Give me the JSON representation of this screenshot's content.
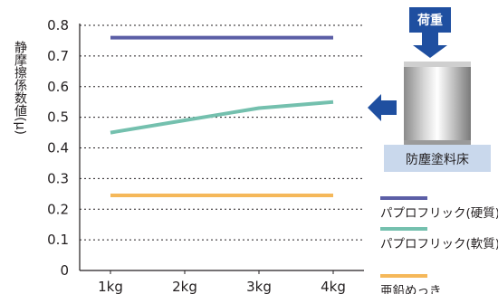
{
  "chart_data": {
    "type": "line",
    "categories": [
      "1kg",
      "2kg",
      "3kg",
      "4kg"
    ],
    "ylabel": "静摩擦係数値(μ)",
    "ylim": [
      0,
      0.8
    ],
    "yticks": [
      "0",
      "0.1",
      "0.2",
      "0.3",
      "0.4",
      "0.5",
      "0.6",
      "0.7",
      "0.8"
    ],
    "grid": true,
    "legend_position": "bottom-right",
    "series": [
      {
        "name": "パプロフリック(硬質)",
        "values": [
          0.76,
          0.76,
          0.76,
          0.76
        ],
        "color": "#5b5ea6"
      },
      {
        "name": "パプロフリック(軟質)",
        "values": [
          0.45,
          0.49,
          0.53,
          0.55
        ],
        "color": "#74c0ae"
      },
      {
        "name": "亜鉛めっき",
        "values": [
          0.245,
          0.245,
          0.245,
          0.245
        ],
        "color": "#f5b85a"
      }
    ]
  },
  "diagram": {
    "load_label": "荷重",
    "floor_label": "防塵塗料床",
    "arrow_color": "#1f4fa0"
  }
}
